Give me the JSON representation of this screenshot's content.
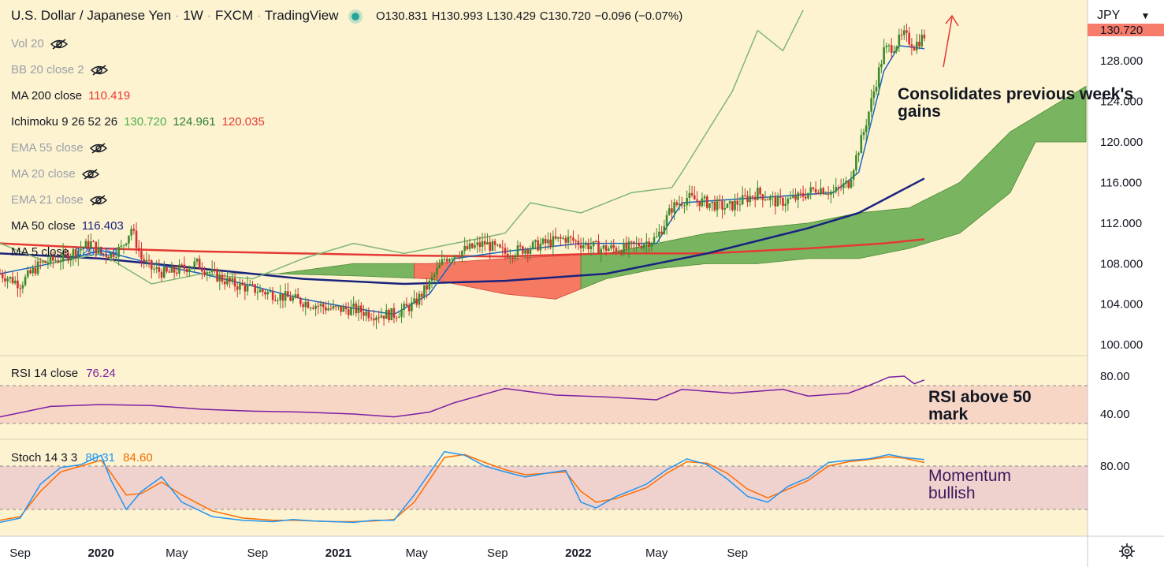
{
  "header": {
    "symbol": "U.S. Dollar / Japanese Yen",
    "interval": "1W",
    "exchange": "FXCM",
    "platform": "TradingView",
    "open": "O130.831",
    "high": "H130.993",
    "low": "L130.429",
    "close": "C130.720",
    "change": "−0.096 (−0.07%)"
  },
  "currency": "JPY",
  "indicators": [
    {
      "label": "Vol 20",
      "value": "",
      "hidden": true
    },
    {
      "label": "BB 20 close 2",
      "value": "",
      "hidden": true
    },
    {
      "label": "MA 200 close",
      "value": "110.419",
      "color": "#e53935"
    },
    {
      "label": "Ichimoku 9 26 52 26",
      "values": [
        "130.720",
        "124.961",
        "120.035"
      ],
      "colors": [
        "#4caf50",
        "#2e7d32",
        "#e53935"
      ]
    },
    {
      "label": "EMA 55 close",
      "value": "",
      "hidden": true
    },
    {
      "label": "MA 20 close",
      "value": "",
      "hidden": true
    },
    {
      "label": "EMA 21 close",
      "value": "",
      "hidden": true
    },
    {
      "label": "MA 50 close",
      "value": "116.403",
      "color": "#1a237e"
    },
    {
      "label": "MA 5 close",
      "value": "129.154",
      "color": "#1565c0"
    }
  ],
  "annotations": {
    "price": "Consolidates previous week's gains",
    "rsi": "RSI above 50 mark",
    "stoch": "Momentum bullish"
  },
  "rsi_pane": {
    "label": "RSI 14 close",
    "value": "76.24",
    "color": "#7b1fa2"
  },
  "stoch_pane": {
    "label": "Stoch 14 3 3",
    "k": "89.31",
    "d": "84.60",
    "k_color": "#2196f3",
    "d_color": "#ff6d00"
  },
  "chart_data": {
    "type": "candlestick",
    "title": "U.S. Dollar / Japanese Yen, 1W, FXCM",
    "x_tick_labels": [
      "Sep",
      "2020",
      "May",
      "Sep",
      "2021",
      "May",
      "Sep",
      "2022",
      "May",
      "Sep"
    ],
    "price_axis": {
      "range": [
        99,
        134
      ],
      "ticks": [
        "100.000",
        "104.000",
        "108.000",
        "112.000",
        "116.000",
        "120.000",
        "124.000",
        "128.000"
      ],
      "last_price": "130.720"
    },
    "rsi_axis": {
      "range": [
        15,
        100
      ],
      "ticks": [
        "40.00",
        "80.00"
      ],
      "band": [
        30,
        70
      ]
    },
    "stoch_axis": {
      "range": [
        -15,
        115
      ],
      "ticks": [
        "80.00"
      ],
      "band": [
        20,
        80
      ]
    },
    "close_path": [
      [
        0,
        107
      ],
      [
        8,
        106
      ],
      [
        16,
        108
      ],
      [
        24,
        108.5
      ],
      [
        32,
        109.5
      ],
      [
        36,
        110
      ],
      [
        40,
        109
      ],
      [
        44,
        109
      ],
      [
        48,
        109.5
      ],
      [
        52,
        111.5
      ],
      [
        56,
        108.5
      ],
      [
        60,
        107.5
      ],
      [
        66,
        107
      ],
      [
        72,
        107.5
      ],
      [
        78,
        108
      ],
      [
        84,
        107
      ],
      [
        92,
        106
      ],
      [
        100,
        105.5
      ],
      [
        108,
        105
      ],
      [
        116,
        104.5
      ],
      [
        124,
        104
      ],
      [
        132,
        103.5
      ],
      [
        140,
        103.5
      ],
      [
        148,
        103
      ],
      [
        156,
        103
      ],
      [
        160,
        103.5
      ],
      [
        164,
        104
      ],
      [
        170,
        106
      ],
      [
        176,
        108.5
      ],
      [
        180,
        109
      ],
      [
        186,
        109.5
      ],
      [
        192,
        110
      ],
      [
        200,
        109
      ],
      [
        208,
        109.5
      ],
      [
        216,
        110
      ],
      [
        224,
        110.5
      ],
      [
        230,
        110
      ],
      [
        238,
        109.5
      ],
      [
        248,
        109.5
      ],
      [
        254,
        110
      ],
      [
        260,
        110.5
      ],
      [
        266,
        113.5
      ],
      [
        272,
        114.5
      ],
      [
        280,
        114
      ],
      [
        288,
        113.5
      ],
      [
        296,
        114.5
      ],
      [
        300,
        115
      ],
      [
        308,
        114
      ],
      [
        316,
        114.5
      ],
      [
        324,
        115.5
      ],
      [
        330,
        115
      ],
      [
        336,
        116
      ],
      [
        342,
        121
      ],
      [
        346,
        125
      ],
      [
        350,
        129
      ],
      [
        354,
        129.5
      ],
      [
        358,
        130.5
      ],
      [
        362,
        129.5
      ],
      [
        366,
        130.5
      ]
    ],
    "price_series": [
      {
        "name": "MA 200",
        "color": "#e53935",
        "points": [
          [
            0,
            110
          ],
          [
            40,
            109.5
          ],
          [
            80,
            109.2
          ],
          [
            120,
            109
          ],
          [
            160,
            108.8
          ],
          [
            200,
            108.7
          ],
          [
            240,
            109
          ],
          [
            280,
            109
          ],
          [
            320,
            109.5
          ],
          [
            350,
            110
          ],
          [
            366,
            110.4
          ]
        ]
      },
      {
        "name": "MA 50",
        "color": "#1a237e",
        "points": [
          [
            0,
            109
          ],
          [
            40,
            108.5
          ],
          [
            80,
            107.5
          ],
          [
            120,
            106.5
          ],
          [
            160,
            106
          ],
          [
            200,
            106.3
          ],
          [
            240,
            107
          ],
          [
            280,
            109
          ],
          [
            320,
            111.5
          ],
          [
            340,
            113
          ],
          [
            366,
            116.4
          ]
        ]
      },
      {
        "name": "MA 5",
        "color": "#1565c0",
        "points": [
          [
            0,
            107
          ],
          [
            20,
            108
          ],
          [
            40,
            109.3
          ],
          [
            60,
            108
          ],
          [
            80,
            107
          ],
          [
            100,
            105.8
          ],
          [
            120,
            104.5
          ],
          [
            140,
            103.6
          ],
          [
            156,
            103
          ],
          [
            170,
            105
          ],
          [
            180,
            108.5
          ],
          [
            200,
            109.2
          ],
          [
            230,
            110
          ],
          [
            260,
            110
          ],
          [
            270,
            114
          ],
          [
            300,
            114.5
          ],
          [
            330,
            115
          ],
          [
            340,
            117
          ],
          [
            350,
            127
          ],
          [
            356,
            129.5
          ],
          [
            366,
            129.2
          ]
        ]
      },
      {
        "name": "Ichimoku lagging span",
        "color": "#81b675",
        "points": [
          [
            0,
            110
          ],
          [
            20,
            108
          ],
          [
            40,
            109
          ],
          [
            60,
            106
          ],
          [
            80,
            107
          ],
          [
            100,
            106.5
          ],
          [
            120,
            108.5
          ],
          [
            140,
            110
          ],
          [
            160,
            109
          ],
          [
            180,
            110
          ],
          [
            200,
            111
          ],
          [
            210,
            114
          ],
          [
            230,
            113
          ],
          [
            250,
            115
          ],
          [
            266,
            115.5
          ],
          [
            270,
            117
          ],
          [
            290,
            125
          ],
          [
            300,
            131
          ],
          [
            310,
            129
          ],
          [
            318,
            133
          ]
        ]
      }
    ],
    "ichimoku_cloud_upper": [
      [
        90,
        107
      ],
      [
        110,
        107
      ],
      [
        140,
        108
      ],
      [
        170,
        108
      ],
      [
        200,
        108.5
      ],
      [
        240,
        109
      ],
      [
        260,
        110
      ],
      [
        280,
        111
      ],
      [
        300,
        111.5
      ],
      [
        320,
        112
      ],
      [
        340,
        113
      ],
      [
        360,
        113.5
      ],
      [
        380,
        116
      ],
      [
        400,
        121
      ],
      [
        420,
        124
      ],
      [
        430,
        125.5
      ]
    ],
    "ichimoku_cloud_lower": [
      [
        90,
        107
      ],
      [
        110,
        107
      ],
      [
        140,
        106.8
      ],
      [
        170,
        106.5
      ],
      [
        200,
        105
      ],
      [
        220,
        104.5
      ],
      [
        240,
        106.5
      ],
      [
        260,
        107.5
      ],
      [
        280,
        108
      ],
      [
        300,
        108
      ],
      [
        320,
        108.5
      ],
      [
        340,
        108.5
      ],
      [
        360,
        109.5
      ],
      [
        380,
        111
      ],
      [
        400,
        115
      ],
      [
        410,
        120
      ],
      [
        430,
        120
      ]
    ],
    "rsi_values": [
      [
        0,
        37
      ],
      [
        20,
        48
      ],
      [
        40,
        50
      ],
      [
        60,
        49
      ],
      [
        80,
        45
      ],
      [
        100,
        43
      ],
      [
        120,
        42
      ],
      [
        140,
        40
      ],
      [
        156,
        37
      ],
      [
        170,
        42
      ],
      [
        180,
        52
      ],
      [
        200,
        67
      ],
      [
        220,
        60
      ],
      [
        240,
        58
      ],
      [
        260,
        55
      ],
      [
        270,
        66
      ],
      [
        290,
        62
      ],
      [
        310,
        66
      ],
      [
        320,
        59
      ],
      [
        336,
        62
      ],
      [
        344,
        70
      ],
      [
        352,
        79
      ],
      [
        358,
        80
      ],
      [
        362,
        72
      ],
      [
        366,
        76
      ]
    ],
    "stoch_k_values": [
      [
        0,
        2
      ],
      [
        8,
        8
      ],
      [
        16,
        55
      ],
      [
        24,
        78
      ],
      [
        32,
        82
      ],
      [
        40,
        95
      ],
      [
        44,
        60
      ],
      [
        50,
        20
      ],
      [
        56,
        45
      ],
      [
        64,
        65
      ],
      [
        72,
        30
      ],
      [
        84,
        10
      ],
      [
        96,
        5
      ],
      [
        108,
        3
      ],
      [
        116,
        6
      ],
      [
        124,
        4
      ],
      [
        132,
        3
      ],
      [
        140,
        2
      ],
      [
        148,
        5
      ],
      [
        156,
        5
      ],
      [
        164,
        40
      ],
      [
        176,
        100
      ],
      [
        184,
        95
      ],
      [
        192,
        80
      ],
      [
        200,
        72
      ],
      [
        208,
        65
      ],
      [
        216,
        70
      ],
      [
        224,
        74
      ],
      [
        230,
        30
      ],
      [
        236,
        22
      ],
      [
        244,
        38
      ],
      [
        256,
        55
      ],
      [
        264,
        75
      ],
      [
        272,
        90
      ],
      [
        280,
        82
      ],
      [
        288,
        62
      ],
      [
        296,
        38
      ],
      [
        304,
        30
      ],
      [
        312,
        52
      ],
      [
        320,
        64
      ],
      [
        328,
        85
      ],
      [
        336,
        88
      ],
      [
        344,
        90
      ],
      [
        352,
        96
      ],
      [
        358,
        92
      ],
      [
        366,
        89
      ]
    ],
    "stoch_d_values": [
      [
        0,
        5
      ],
      [
        8,
        10
      ],
      [
        16,
        45
      ],
      [
        24,
        72
      ],
      [
        32,
        80
      ],
      [
        40,
        88
      ],
      [
        44,
        70
      ],
      [
        50,
        40
      ],
      [
        56,
        42
      ],
      [
        64,
        58
      ],
      [
        72,
        40
      ],
      [
        84,
        18
      ],
      [
        96,
        8
      ],
      [
        108,
        5
      ],
      [
        116,
        5
      ],
      [
        124,
        4
      ],
      [
        132,
        3
      ],
      [
        140,
        3
      ],
      [
        148,
        4
      ],
      [
        156,
        6
      ],
      [
        164,
        30
      ],
      [
        176,
        92
      ],
      [
        184,
        96
      ],
      [
        192,
        85
      ],
      [
        200,
        75
      ],
      [
        208,
        68
      ],
      [
        216,
        70
      ],
      [
        224,
        72
      ],
      [
        230,
        45
      ],
      [
        236,
        30
      ],
      [
        244,
        35
      ],
      [
        256,
        50
      ],
      [
        264,
        70
      ],
      [
        272,
        86
      ],
      [
        280,
        84
      ],
      [
        288,
        70
      ],
      [
        296,
        48
      ],
      [
        304,
        36
      ],
      [
        312,
        48
      ],
      [
        320,
        60
      ],
      [
        328,
        80
      ],
      [
        336,
        86
      ],
      [
        344,
        89
      ],
      [
        352,
        93
      ],
      [
        358,
        91
      ],
      [
        366,
        85
      ]
    ]
  }
}
